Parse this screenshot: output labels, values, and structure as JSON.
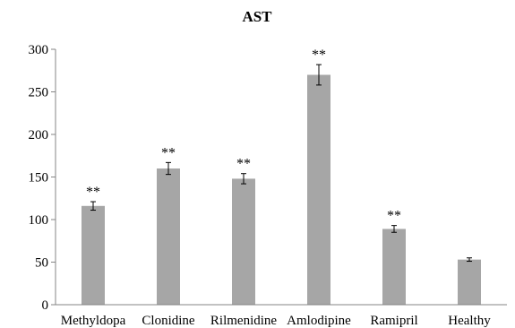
{
  "chart_data": {
    "type": "bar",
    "title": "AST",
    "xlabel": "",
    "ylabel": "",
    "ylim": [
      0,
      300
    ],
    "yticks": [
      0,
      50,
      100,
      150,
      200,
      250,
      300
    ],
    "grid": false,
    "legend": "none",
    "bar_color": "#a6a6a6",
    "axis_color": "#868686",
    "error_color": "#000000",
    "categories": [
      "Methyldopa",
      "Clonidine",
      "Rilmenidine",
      "Amlodipine",
      "Ramipril",
      "Healthy"
    ],
    "values": [
      116,
      160,
      148,
      270,
      89,
      53
    ],
    "errors": [
      5,
      7,
      6,
      12,
      4,
      2
    ],
    "significance": [
      "**",
      "**",
      "**",
      "**",
      "**",
      ""
    ]
  }
}
